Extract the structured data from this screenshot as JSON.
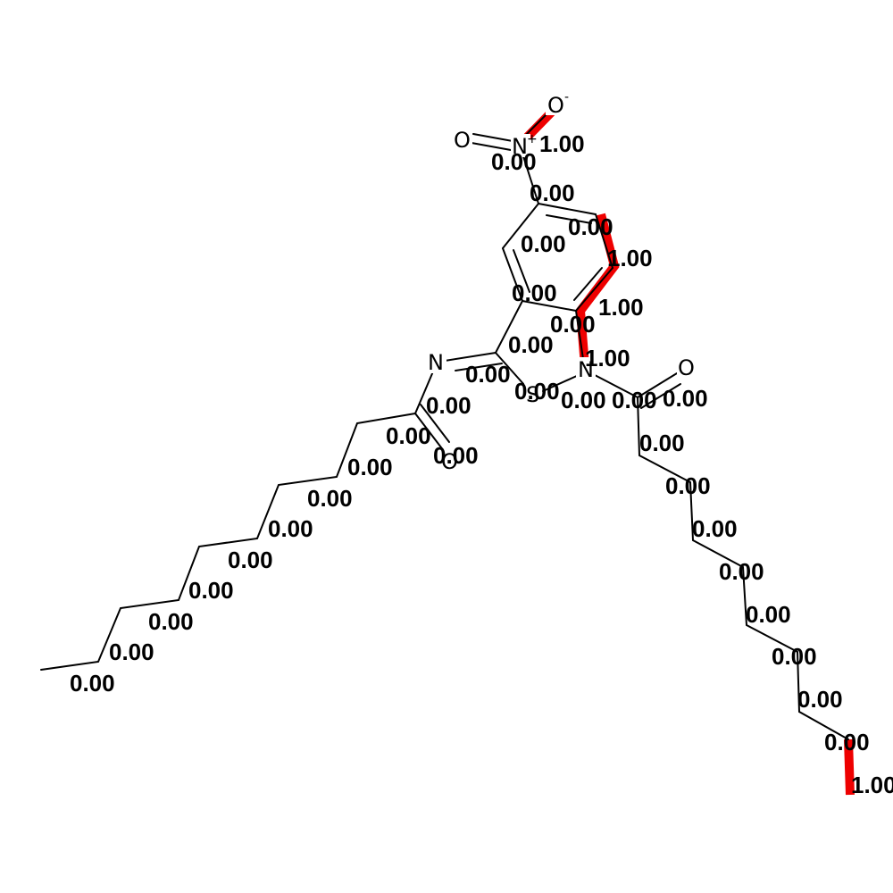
{
  "highlight_color": "#ee0000",
  "bond_color": "#000000",
  "atoms": {
    "o_minus": "O",
    "o_minus_charge": "-",
    "o_nitro": "O",
    "n_nitro": "N",
    "n_nitro_charge": "+",
    "n_imine": "N",
    "s_ring": "S",
    "n_ring": "N",
    "o_amide": "O",
    "o_acyl": "O"
  },
  "weights": {
    "w_no_minus": "1.00",
    "w_no": "0.00",
    "w_n_c": "0.00",
    "w_ring_top": "0.00",
    "w_ring_r1": "1.00",
    "w_ring_left": "0.00",
    "w_ring_r2": "1.00",
    "w_ring_inner": "0.00",
    "w_cn_ring": "1.00",
    "w_c_cim": "0.00",
    "w_cim_n": "0.00",
    "w_cim_s": "0.00",
    "w_s_n": "0.00",
    "w_n_cam": "0.00",
    "w_cam_o": "0.00",
    "w_nim_cac": "0.00",
    "w_cac_o": "0.00",
    "w_cac_c1": "0.00",
    "w_l1": "0.00",
    "w_l2": "0.00",
    "w_l3": "0.00",
    "w_l4": "0.00",
    "w_l5": "0.00",
    "w_l6": "0.00",
    "w_l7": "0.00",
    "w_l8": "0.00",
    "w_l9": "0.00",
    "w_r1": "0.00",
    "w_r2": "0.00",
    "w_r3": "0.00",
    "w_r4": "0.00",
    "w_r5": "0.00",
    "w_r6": "0.00",
    "w_r7": "0.00",
    "w_r8": "0.00",
    "w_r9": "1.00"
  }
}
